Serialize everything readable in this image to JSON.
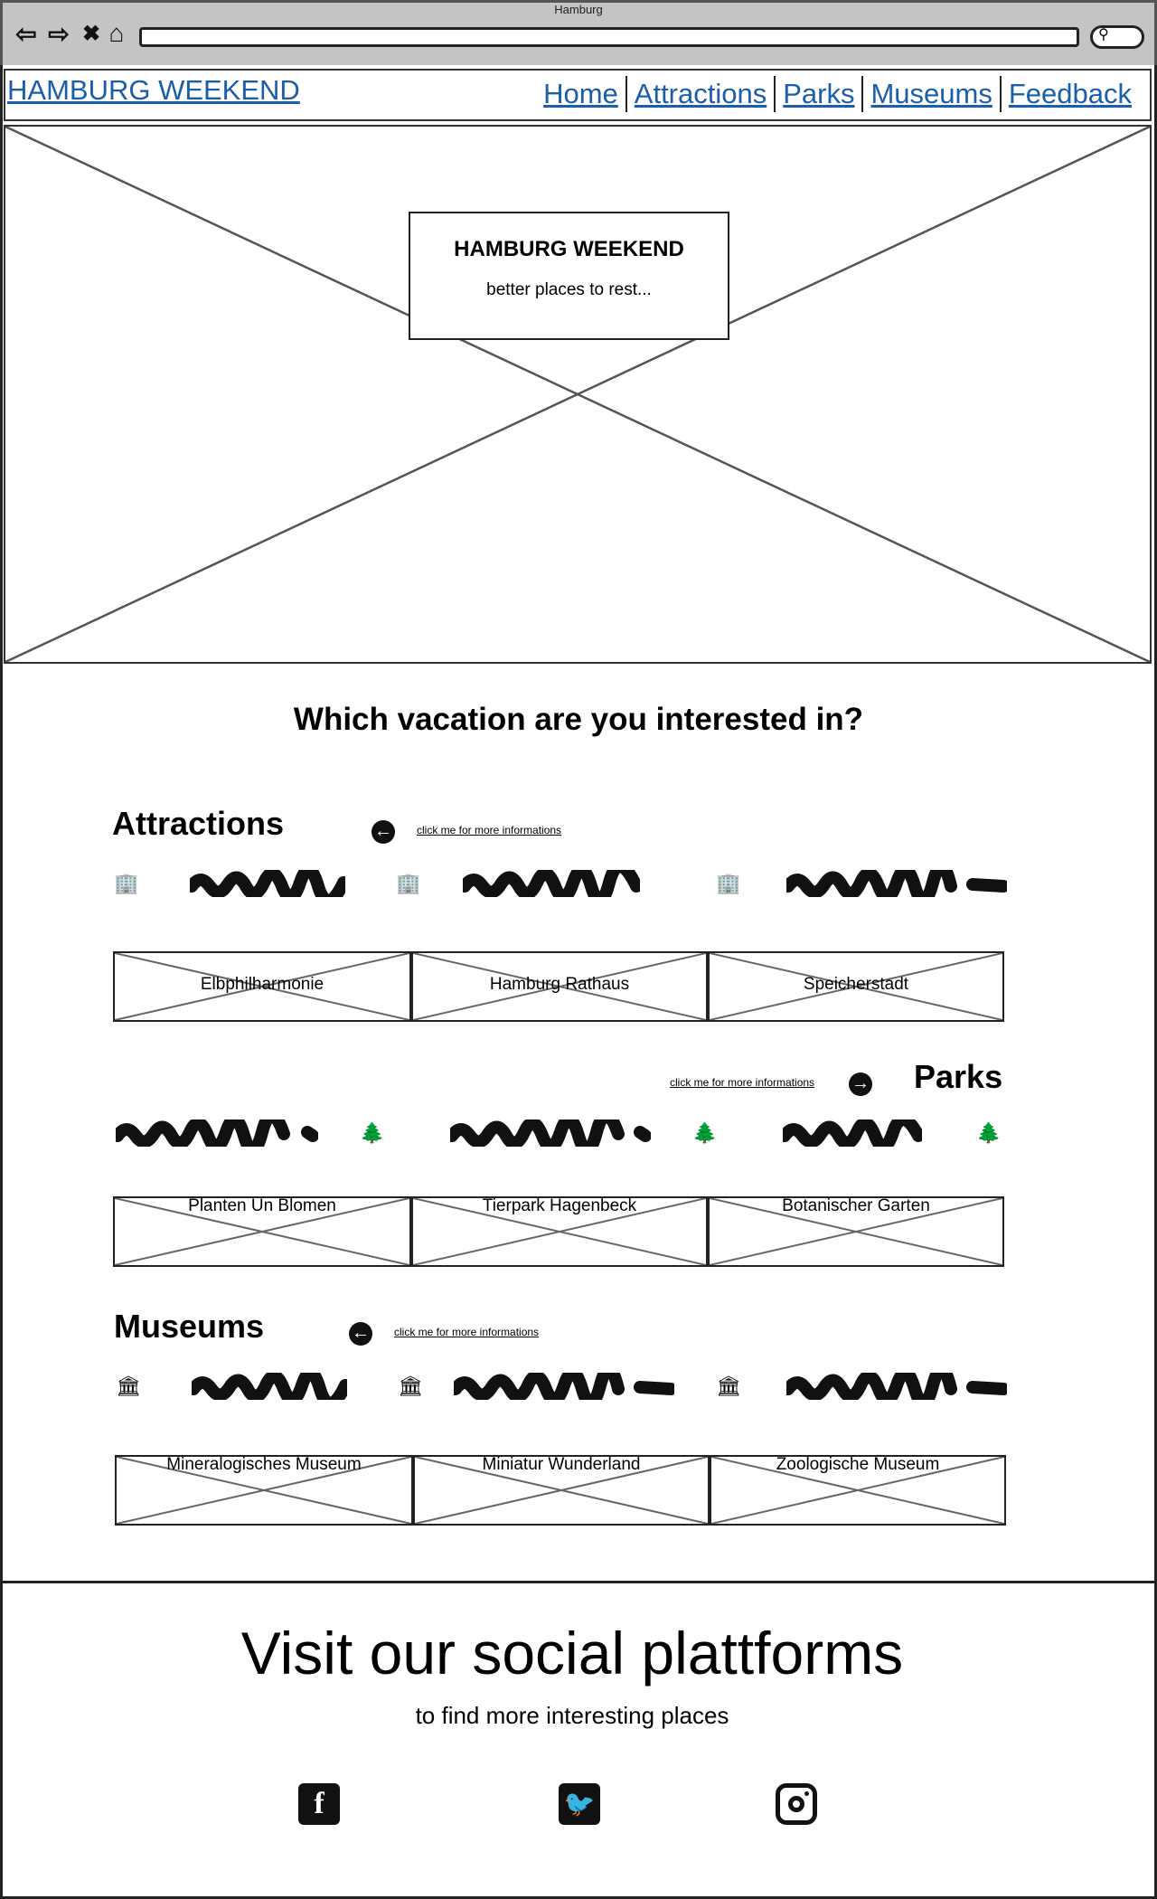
{
  "window": {
    "title": "Hamburg"
  },
  "browser": {
    "back_icon": "back-arrow-icon",
    "forward_icon": "forward-arrow-icon",
    "close_icon": "close-icon",
    "home_icon": "home-icon",
    "search_icon": "search-icon"
  },
  "nav": {
    "brand": "HAMBURG WEEKEND",
    "links": [
      "Home",
      "Attractions",
      "Parks",
      "Museums",
      "Feedback"
    ]
  },
  "hero": {
    "title": "HAMBURG WEEKEND",
    "subtitle": "better places to rest..."
  },
  "main": {
    "heading": "Which vacation are you interested in?"
  },
  "sections": {
    "attractions": {
      "title": "Attractions",
      "more_link": "click me for more informations",
      "icon": "building-icon",
      "cards": [
        "Elbphilharmonie",
        "Hamburg Rathaus",
        "Speicherstadt"
      ]
    },
    "parks": {
      "title": "Parks",
      "more_link": "click me for more informations",
      "icon": "tree-icon",
      "cards": [
        "Planten Un Blomen",
        "Tierpark Hagenbeck",
        "Botanischer Garten"
      ]
    },
    "museums": {
      "title": "Museums",
      "more_link": "click me for more informations",
      "icon": "museum-icon",
      "cards": [
        "Mineralogisches Museum",
        "Miniatur Wunderland",
        "Zoologische Museum"
      ]
    }
  },
  "footer": {
    "heading": "Visit our social plattforms",
    "subheading": "to find more interesting places",
    "socials": [
      "facebook-icon",
      "twitter-icon",
      "instagram-icon"
    ]
  },
  "colors": {
    "link": "#1a5fa8",
    "chrome": "#c4c4c4"
  }
}
